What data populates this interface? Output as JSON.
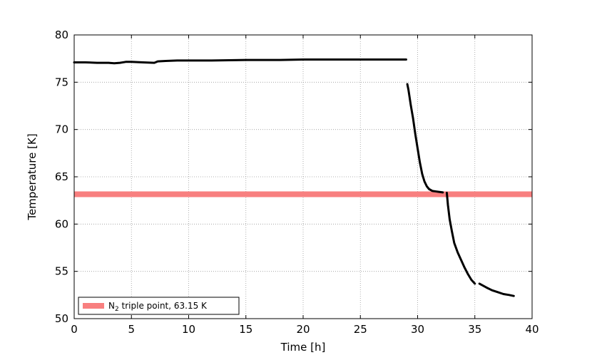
{
  "chart_data": {
    "type": "line",
    "title": "",
    "xlabel": "Time [h]",
    "ylabel": "Temperature [K]",
    "xlim": [
      0,
      40
    ],
    "ylim": [
      50,
      80
    ],
    "xticks": [
      0,
      5,
      10,
      15,
      20,
      25,
      30,
      35,
      40
    ],
    "yticks": [
      50,
      55,
      60,
      65,
      70,
      75,
      80
    ],
    "grid": true,
    "legend_position": "lower-left",
    "legend": {
      "label_prefix": "N",
      "label_sub": "2",
      "label_suffix": " triple point, 63.15 K"
    },
    "reference_line": {
      "y": 63.15,
      "color": "#f87f7f"
    },
    "series_color": "#000000",
    "series": [
      {
        "segments": [
          [
            [
              0,
              77.1
            ],
            [
              1,
              77.1
            ],
            [
              2,
              77.05
            ],
            [
              3,
              77.05
            ],
            [
              3.5,
              77.0
            ],
            [
              4,
              77.05
            ],
            [
              4.5,
              77.15
            ],
            [
              5,
              77.15
            ],
            [
              6,
              77.1
            ],
            [
              7,
              77.05
            ],
            [
              7.3,
              77.2
            ],
            [
              8,
              77.25
            ],
            [
              9,
              77.3
            ],
            [
              10,
              77.3
            ],
            [
              12,
              77.3
            ],
            [
              15,
              77.35
            ],
            [
              18,
              77.35
            ],
            [
              20,
              77.4
            ],
            [
              22,
              77.4
            ],
            [
              25,
              77.4
            ],
            [
              27,
              77.4
            ],
            [
              29,
              77.4
            ]
          ],
          [
            [
              29.1,
              74.8
            ],
            [
              29.2,
              74.2
            ],
            [
              29.3,
              73.4
            ],
            [
              29.4,
              72.6
            ],
            [
              29.6,
              71.2
            ],
            [
              29.8,
              69.5
            ],
            [
              30.0,
              68.0
            ],
            [
              30.2,
              66.5
            ],
            [
              30.4,
              65.3
            ],
            [
              30.6,
              64.5
            ],
            [
              30.8,
              64.0
            ],
            [
              31.0,
              63.7
            ],
            [
              31.3,
              63.5
            ],
            [
              31.6,
              63.45
            ],
            [
              31.9,
              63.4
            ],
            [
              32.2,
              63.35
            ]
          ],
          [
            [
              32.55,
              63.3
            ],
            [
              32.65,
              62.0
            ],
            [
              32.8,
              60.5
            ],
            [
              33.0,
              59.2
            ],
            [
              33.2,
              58.0
            ],
            [
              33.5,
              57.0
            ],
            [
              33.8,
              56.2
            ],
            [
              34.1,
              55.4
            ],
            [
              34.4,
              54.7
            ],
            [
              34.7,
              54.1
            ],
            [
              35.0,
              53.7
            ]
          ],
          [
            [
              35.4,
              53.7
            ],
            [
              35.7,
              53.5
            ],
            [
              36.0,
              53.3
            ],
            [
              36.5,
              53.0
            ],
            [
              37.0,
              52.8
            ],
            [
              37.5,
              52.6
            ],
            [
              38.0,
              52.5
            ],
            [
              38.4,
              52.4
            ]
          ]
        ]
      }
    ]
  }
}
